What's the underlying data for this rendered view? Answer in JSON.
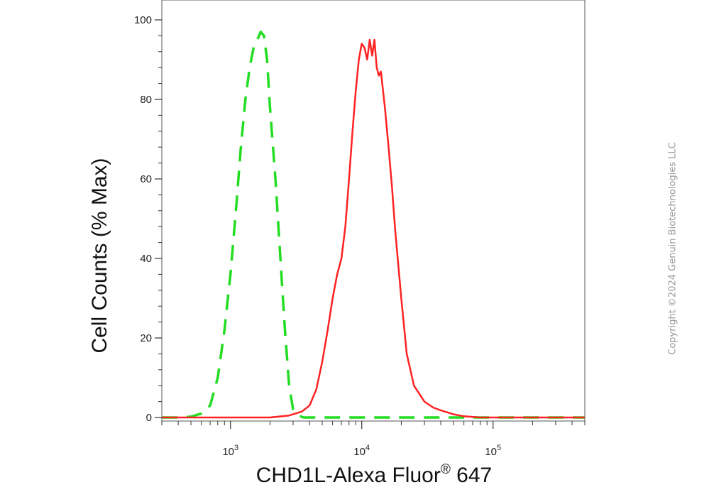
{
  "chart_data": {
    "type": "line",
    "title": "",
    "xlabel": "CHD1L-Alexa Fluor",
    "xlabel_reg": "®",
    "xlabel_suffix": " 647",
    "ylabel": "Cell Counts (% Max)",
    "xscale": "log",
    "xlim": [
      300,
      500000
    ],
    "ylim": [
      0,
      100
    ],
    "grid": false,
    "y_ticks": [
      0,
      20,
      40,
      60,
      80,
      100
    ],
    "y_tick_labels": [
      "0",
      "20",
      "40",
      "60",
      "80",
      "100"
    ],
    "x_ticks": [
      1000,
      10000,
      100000
    ],
    "x_tick_base": "10",
    "x_tick_exponents": [
      "3",
      "4",
      "5"
    ],
    "series": [
      {
        "color": "#22dd22",
        "style": "dashed",
        "x": [
          300,
          400,
          500,
          600,
          700,
          800,
          900,
          1000,
          1100,
          1200,
          1300,
          1400,
          1500,
          1600,
          1700,
          1800,
          1900,
          2000,
          2200,
          2400,
          2600,
          2800,
          3000,
          3300,
          3600,
          4000,
          5000,
          10000,
          100000,
          500000
        ],
        "y": [
          0,
          0,
          0.2,
          1,
          3,
          10,
          22,
          36,
          52,
          68,
          80,
          88,
          93,
          95,
          97,
          96,
          90,
          78,
          60,
          40,
          22,
          8,
          2,
          0.5,
          0,
          0,
          0,
          0,
          0,
          0
        ]
      },
      {
        "color": "#ff2222",
        "style": "solid",
        "x": [
          300,
          1000,
          2000,
          2800,
          3500,
          4000,
          4500,
          5000,
          5500,
          6000,
          6500,
          7000,
          7500,
          8000,
          8500,
          9000,
          9500,
          10000,
          10500,
          11000,
          11500,
          12000,
          12500,
          13000,
          13500,
          14000,
          15000,
          16000,
          17000,
          18000,
          20000,
          22000,
          25000,
          30000,
          35000,
          40000,
          50000,
          60000,
          80000,
          100000,
          500000
        ],
        "y": [
          0,
          0,
          0,
          0.5,
          1.5,
          3,
          7,
          14,
          22,
          30,
          36,
          40,
          48,
          60,
          72,
          82,
          90,
          94,
          93,
          90,
          95,
          91,
          95,
          88,
          86,
          87,
          78,
          68,
          58,
          47,
          30,
          16,
          8,
          4,
          2.5,
          1.8,
          0.8,
          0.3,
          0,
          0,
          0
        ]
      }
    ]
  },
  "watermark": "Copyright ©2024 Genuin Biotechnologies LLC"
}
